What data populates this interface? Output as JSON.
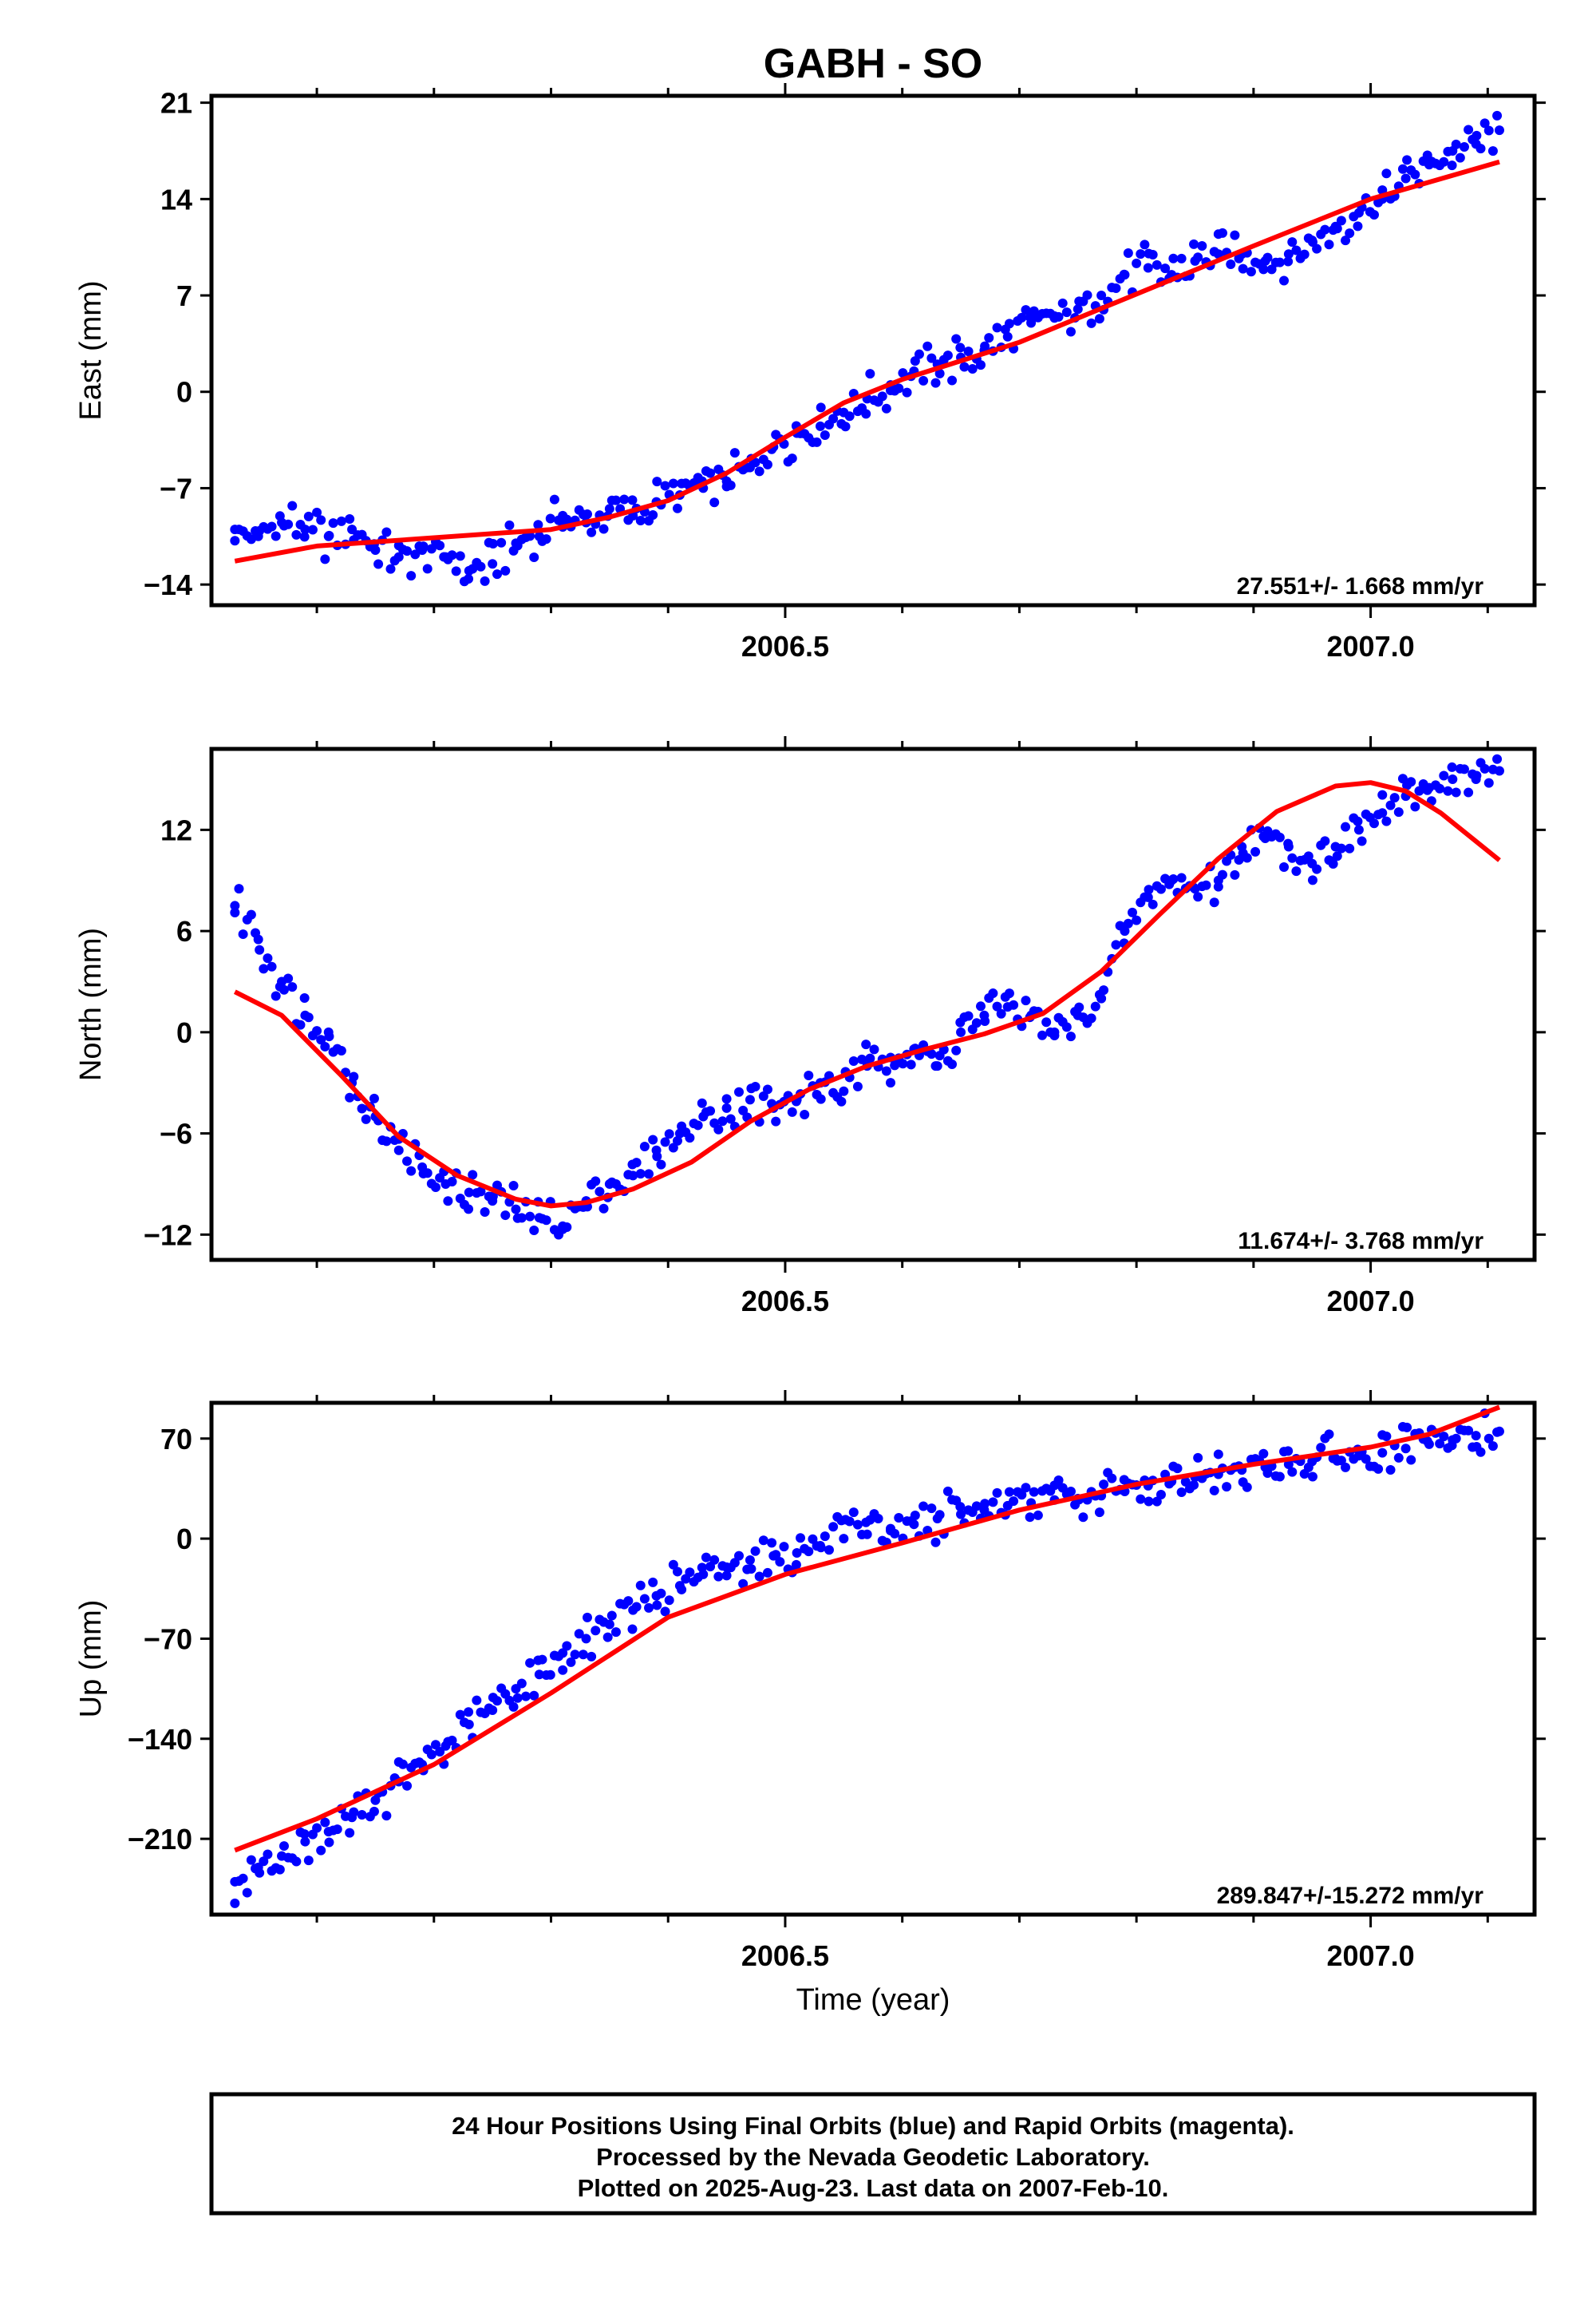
{
  "figure": {
    "title": "GABH - SO",
    "xlabel": "Time (year)",
    "footer": {
      "line1": "24 Hour Positions Using Final Orbits (blue) and Rapid Orbits (magenta).",
      "line2": "Processed by the Nevada Geodetic Laboratory.",
      "line3": "Plotted on 2025-Aug-23. Last data on 2007-Feb-10."
    }
  },
  "colors": {
    "points": "#0000ff",
    "fit": "#ff0000",
    "axes": "#000000"
  },
  "chart_data": [
    {
      "type": "scatter",
      "ylabel": "East (mm)",
      "xlim": [
        2006.01,
        2007.14
      ],
      "ylim": [
        -15.5,
        21.5
      ],
      "yticks": [
        21,
        14,
        7,
        0,
        -7,
        -14
      ],
      "ytick_labels": [
        "21",
        "14",
        "7",
        "0",
        "−7",
        "−14"
      ],
      "xticks": [
        2006.5,
        2007.0
      ],
      "xtick_labels": [
        "2006.5",
        "2007.0"
      ],
      "rate_label": "27.551+/- 1.668 mm/yr",
      "series": [
        {
          "role": "data",
          "x": [
            2006.03,
            2006.05,
            2006.07,
            2006.09,
            2006.11,
            2006.13,
            2006.15,
            2006.17,
            2006.19,
            2006.21,
            2006.23,
            2006.25,
            2006.27,
            2006.29,
            2006.31,
            2006.33,
            2006.35,
            2006.37,
            2006.39,
            2006.41,
            2006.43,
            2006.45,
            2006.47,
            2006.49,
            2006.51,
            2006.53,
            2006.55,
            2006.57,
            2006.59,
            2006.61,
            2006.63,
            2006.65,
            2006.67,
            2006.69,
            2006.71,
            2006.73,
            2006.75,
            2006.77,
            2006.79,
            2006.81,
            2006.83,
            2006.85,
            2006.87,
            2006.89,
            2006.91,
            2006.93,
            2006.95,
            2006.97,
            2006.99,
            2007.01,
            2007.03,
            2007.05,
            2007.07,
            2007.09,
            2007.11
          ],
          "y": [
            -10,
            -10.5,
            -9.5,
            -10,
            -10.5,
            -10,
            -11.5,
            -12,
            -11.5,
            -12,
            -13,
            -12.5,
            -11,
            -10.5,
            -9,
            -9.5,
            -8.5,
            -9,
            -8,
            -7.5,
            -7,
            -6.5,
            -5.5,
            -4,
            -3,
            -2.5,
            -1.5,
            -0.5,
            0.5,
            1.5,
            2,
            2.5,
            3,
            4,
            5,
            5.5,
            6,
            7,
            8.5,
            9,
            8.5,
            9.5,
            10,
            10,
            9.5,
            10,
            11,
            12,
            13,
            14,
            15.5,
            16.5,
            17.5,
            18,
            19
          ]
        },
        {
          "role": "fit",
          "x": [
            2006.03,
            2006.1,
            2006.2,
            2006.3,
            2006.35,
            2006.4,
            2006.45,
            2006.5,
            2006.55,
            2006.6,
            2006.7,
            2006.8,
            2006.9,
            2007.0,
            2007.11
          ],
          "y": [
            -12.3,
            -11.2,
            -10.6,
            -10.0,
            -9.1,
            -7.9,
            -5.9,
            -3.3,
            -0.8,
            0.9,
            3.6,
            7.1,
            10.6,
            14.0,
            16.7
          ]
        }
      ]
    },
    {
      "type": "scatter",
      "ylabel": "North (mm)",
      "xlim": [
        2006.01,
        2007.14
      ],
      "ylim": [
        -13.5,
        16.8
      ],
      "yticks": [
        12,
        6,
        0,
        -6,
        -12
      ],
      "ytick_labels": [
        "12",
        "6",
        "0",
        "−6",
        "−12"
      ],
      "xticks": [
        2006.5,
        2007.0
      ],
      "xtick_labels": [
        "2006.5",
        "2007.0"
      ],
      "rate_label": "11.674+/- 3.768 mm/yr",
      "series": [
        {
          "role": "data",
          "x": [
            2006.03,
            2006.05,
            2006.07,
            2006.09,
            2006.11,
            2006.13,
            2006.15,
            2006.17,
            2006.19,
            2006.21,
            2006.23,
            2006.25,
            2006.27,
            2006.29,
            2006.31,
            2006.33,
            2006.35,
            2006.37,
            2006.39,
            2006.41,
            2006.43,
            2006.45,
            2006.47,
            2006.49,
            2006.51,
            2006.53,
            2006.55,
            2006.57,
            2006.59,
            2006.61,
            2006.63,
            2006.65,
            2006.67,
            2006.69,
            2006.71,
            2006.73,
            2006.75,
            2006.77,
            2006.79,
            2006.81,
            2006.83,
            2006.85,
            2006.87,
            2006.89,
            2006.91,
            2006.93,
            2006.95,
            2006.97,
            2006.99,
            2007.01,
            2007.03,
            2007.05,
            2007.07,
            2007.09,
            2007.11
          ],
          "y": [
            7.5,
            5.5,
            3,
            1,
            0,
            -3,
            -5,
            -7,
            -8,
            -9,
            -9.5,
            -10,
            -10.5,
            -11,
            -11.5,
            -10,
            -9,
            -8.5,
            -7,
            -6,
            -5,
            -4.5,
            -4,
            -4.5,
            -4,
            -3,
            -3.5,
            -2,
            -1.5,
            -1,
            -2,
            0,
            1,
            1.5,
            1,
            0,
            1,
            2,
            6,
            8,
            9,
            8.5,
            9,
            11,
            11.5,
            11,
            10,
            11,
            12,
            13,
            14,
            14.5,
            15,
            15,
            15.5
          ]
        },
        {
          "role": "fit",
          "x": [
            2006.03,
            2006.07,
            2006.12,
            2006.17,
            2006.22,
            2006.27,
            2006.3,
            2006.33,
            2006.37,
            2006.42,
            2006.47,
            2006.52,
            2006.57,
            2006.62,
            2006.67,
            2006.72,
            2006.77,
            2006.82,
            2006.87,
            2006.92,
            2006.97,
            2007.0,
            2007.03,
            2007.06,
            2007.11
          ],
          "y": [
            2.4,
            1.0,
            -2.5,
            -6.2,
            -8.5,
            -9.9,
            -10.3,
            -10.1,
            -9.3,
            -7.7,
            -5.3,
            -3.4,
            -2.0,
            -1.0,
            -0.1,
            1.1,
            3.6,
            7.0,
            10.3,
            13.1,
            14.6,
            14.8,
            14.3,
            13.0,
            10.2
          ]
        }
      ]
    },
    {
      "type": "scatter",
      "ylabel": "Up (mm)",
      "xlim": [
        2006.01,
        2007.14
      ],
      "ylim": [
        -263,
        95
      ],
      "yticks": [
        70,
        0,
        -70,
        -140,
        -210
      ],
      "ytick_labels": [
        "70",
        "0",
        "−70",
        "−140",
        "−210"
      ],
      "xticks": [
        2006.5,
        2007.0
      ],
      "xtick_labels": [
        "2006.5",
        "2007.0"
      ],
      "rate_label": "289.847+/-15.272 mm/yr",
      "series": [
        {
          "role": "data",
          "x": [
            2006.03,
            2006.05,
            2006.07,
            2006.09,
            2006.11,
            2006.13,
            2006.15,
            2006.17,
            2006.19,
            2006.21,
            2006.23,
            2006.25,
            2006.27,
            2006.29,
            2006.31,
            2006.33,
            2006.35,
            2006.37,
            2006.39,
            2006.41,
            2006.43,
            2006.45,
            2006.47,
            2006.49,
            2006.51,
            2006.53,
            2006.55,
            2006.57,
            2006.59,
            2006.61,
            2006.63,
            2006.65,
            2006.67,
            2006.69,
            2006.71,
            2006.73,
            2006.75,
            2006.77,
            2006.79,
            2006.81,
            2006.83,
            2006.85,
            2006.87,
            2006.89,
            2006.91,
            2006.93,
            2006.95,
            2006.97,
            2006.99,
            2007.01,
            2007.03,
            2007.05,
            2007.07,
            2007.09,
            2007.11
          ],
          "y": [
            -240,
            -230,
            -222,
            -212,
            -205,
            -195,
            -183,
            -170,
            -158,
            -145,
            -130,
            -120,
            -105,
            -95,
            -80,
            -70,
            -60,
            -50,
            -40,
            -33,
            -25,
            -20,
            -15,
            -12,
            -10,
            -5,
            0,
            3,
            7,
            10,
            14,
            17,
            20,
            23,
            25,
            27,
            28,
            30,
            33,
            37,
            40,
            43,
            45,
            48,
            50,
            52,
            54,
            56,
            58,
            60,
            63,
            66,
            69,
            72,
            75
          ]
        },
        {
          "role": "fit",
          "x": [
            2006.03,
            2006.1,
            2006.2,
            2006.3,
            2006.4,
            2006.5,
            2006.6,
            2006.7,
            2006.8,
            2006.9,
            2007.0,
            2007.05,
            2007.11
          ],
          "y": [
            -218,
            -196,
            -158,
            -108,
            -55,
            -25,
            -3,
            20,
            38,
            52,
            64,
            73,
            92
          ]
        }
      ]
    }
  ]
}
